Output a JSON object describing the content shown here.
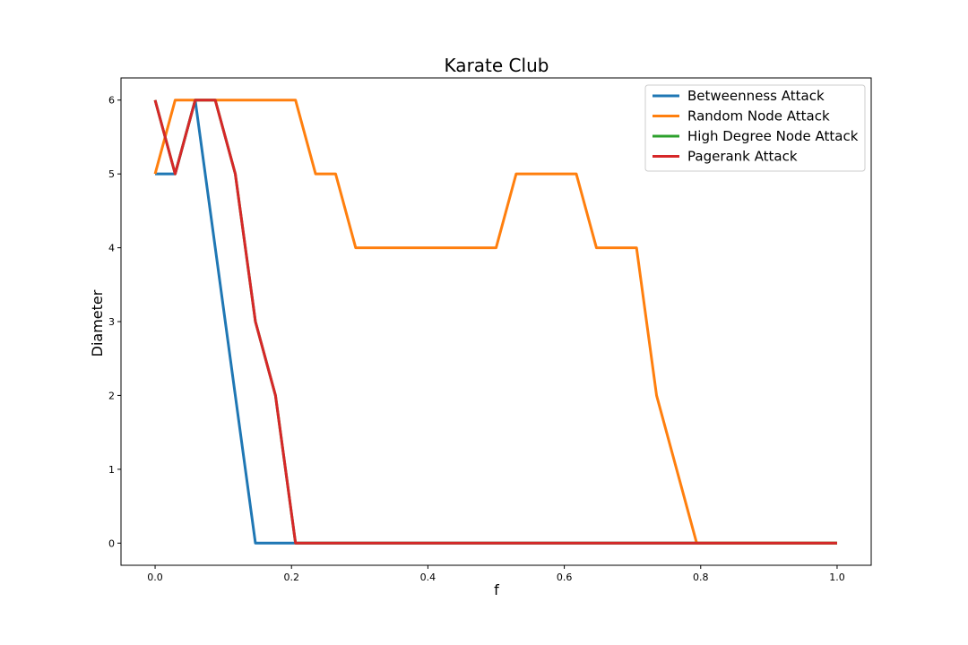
{
  "chart_data": {
    "type": "line",
    "title": "Karate Club",
    "xlabel": "f",
    "ylabel": "Diameter",
    "xlim": [
      -0.05,
      1.05
    ],
    "ylim": [
      -0.3,
      6.3
    ],
    "xticks": [
      0.0,
      0.2,
      0.4,
      0.6,
      0.8,
      1.0
    ],
    "xtick_labels": [
      "0.0",
      "0.2",
      "0.4",
      "0.6",
      "0.8",
      "1.0"
    ],
    "yticks": [
      0,
      1,
      2,
      3,
      4,
      5,
      6
    ],
    "ytick_labels": [
      "0",
      "1",
      "2",
      "3",
      "4",
      "5",
      "6"
    ],
    "grid": false,
    "legend_position": "top-right",
    "x": [
      0.0,
      0.0294,
      0.0588,
      0.0882,
      0.1176,
      0.1471,
      0.1765,
      0.2059,
      0.2353,
      0.2647,
      0.2941,
      0.3235,
      0.3529,
      0.3824,
      0.4118,
      0.4412,
      0.4706,
      0.5,
      0.5294,
      0.5588,
      0.5882,
      0.6176,
      0.6471,
      0.6765,
      0.7059,
      0.7353,
      0.7647,
      0.7941,
      0.8235,
      0.8529,
      0.8824,
      0.9118,
      0.9412,
      0.9706,
      1.0
    ],
    "series": [
      {
        "name": "Betweenness Attack",
        "color": "#1f77b4",
        "values": [
          5,
          5,
          6,
          4,
          2,
          0,
          0,
          0,
          0,
          0,
          0,
          0,
          0,
          0,
          0,
          0,
          0,
          0,
          0,
          0,
          0,
          0,
          0,
          0,
          0,
          0,
          0,
          0,
          0,
          0,
          0,
          0,
          0,
          0,
          0
        ]
      },
      {
        "name": "Random Node Attack",
        "color": "#ff7f0e",
        "values": [
          5,
          6,
          6,
          6,
          6,
          6,
          6,
          6,
          5,
          5,
          4,
          4,
          4,
          4,
          4,
          4,
          4,
          4,
          5,
          5,
          5,
          5,
          4,
          4,
          4,
          2,
          1,
          0,
          0,
          0,
          0,
          0,
          0,
          0,
          0
        ]
      },
      {
        "name": "High Degree Node Attack",
        "color": "#2ca02c",
        "values": [
          6,
          5,
          6,
          6,
          5,
          3,
          2,
          0,
          0,
          0,
          0,
          0,
          0,
          0,
          0,
          0,
          0,
          0,
          0,
          0,
          0,
          0,
          0,
          0,
          0,
          0,
          0,
          0,
          0,
          0,
          0,
          0,
          0,
          0,
          0
        ]
      },
      {
        "name": "Pagerank Attack",
        "color": "#d62728",
        "values": [
          6,
          5,
          6,
          6,
          5,
          3,
          2,
          0,
          0,
          0,
          0,
          0,
          0,
          0,
          0,
          0,
          0,
          0,
          0,
          0,
          0,
          0,
          0,
          0,
          0,
          0,
          0,
          0,
          0,
          0,
          0,
          0,
          0,
          0,
          0
        ]
      }
    ]
  }
}
